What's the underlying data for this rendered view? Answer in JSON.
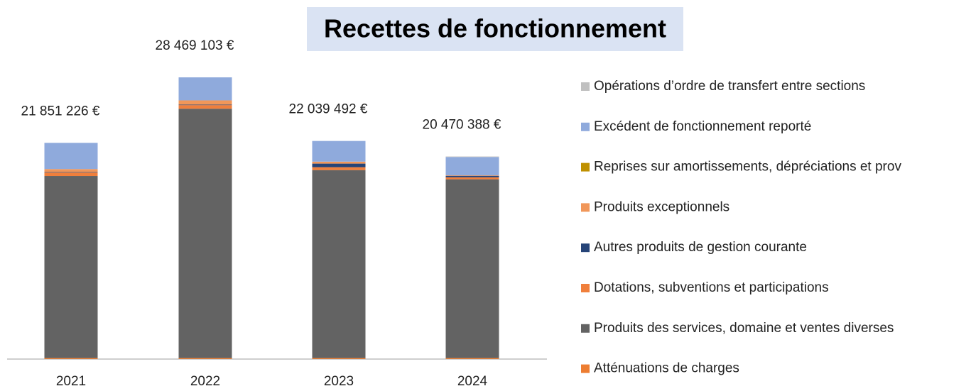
{
  "chart_data": {
    "type": "stacked_bar",
    "title": "Recettes de fonctionnement",
    "categories": [
      "2021",
      "2022",
      "2023",
      "2024"
    ],
    "series": [
      {
        "name": "Atténuations de charges",
        "color": "#ed7d31",
        "values": [
          100000,
          100000,
          100000,
          100000
        ]
      },
      {
        "name": "Produits des services, domaine et ventes diverses",
        "color": "#636363",
        "values": [
          18400000,
          25200000,
          19000000,
          18070000
        ]
      },
      {
        "name": "Dotations, subventions et participations",
        "color": "#f07f3c",
        "values": [
          350000,
          360000,
          290000,
          200000
        ]
      },
      {
        "name": "Autres produits de gestion courante",
        "color": "#264478",
        "values": [
          50000,
          50000,
          360000,
          150000
        ]
      },
      {
        "name": "Produits exceptionnels",
        "color": "#f1975a",
        "values": [
          300000,
          430000,
          200000,
          50000
        ]
      },
      {
        "name": "Reprises sur amortissements, dépréciations et prov",
        "color": "#bf9000",
        "values": [
          0,
          0,
          0,
          0
        ]
      },
      {
        "name": "Excédent de fonctionnement reporté",
        "color": "#8faadc",
        "values": [
          2651226,
          2329103,
          2089492,
          1850388
        ]
      },
      {
        "name": "Opérations d’ordre de transfert entre sections",
        "color": "#c0c0c0",
        "values": [
          0,
          0,
          0,
          50000
        ]
      }
    ],
    "totals": {
      "values": [
        21851226,
        28469103,
        22039492,
        20470388
      ],
      "value_labels": [
        "21 851 226 €",
        "28 469 103 €",
        "22 039 492 €",
        "20 470 388 €"
      ]
    }
  }
}
